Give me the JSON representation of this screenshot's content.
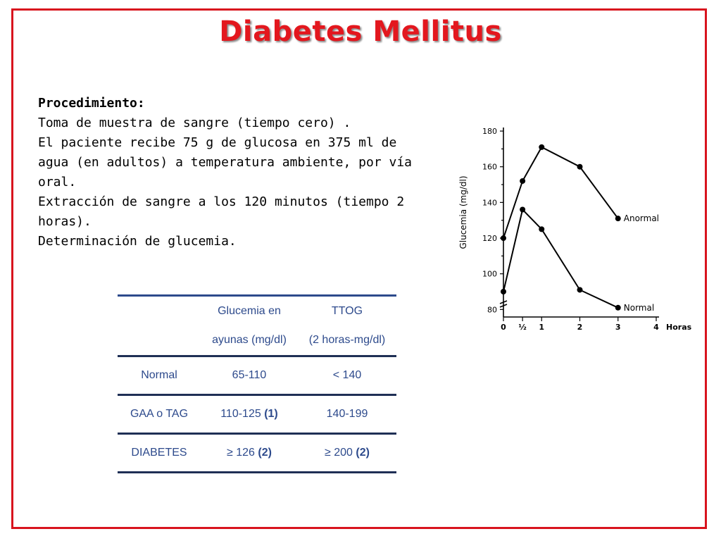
{
  "slide": {
    "title": "Diabetes Mellitus"
  },
  "procedure": {
    "heading": "Procedimiento:",
    "lines": [
      "Toma de muestra de sangre (tiempo cero) .",
      "El paciente recibe 75 g de glucosa en 375 ml de",
      "agua (en adultos) a temperatura ambiente, por vía",
      "oral.",
      "Extracción de sangre a los 120 minutos (tiempo 2",
      "horas).",
      "Determinación de glucemia."
    ]
  },
  "criteria_table": {
    "headers": {
      "col2_line1": "Glucemia en",
      "col2_line2": "ayunas (mg/dl)",
      "col3_line1": "TTOG",
      "col3_line2": "(2 horas-mg/dl)"
    },
    "rows": [
      {
        "label": "Normal",
        "fasting": "65-110",
        "fasting_note": "",
        "ogtt": "< 140",
        "ogtt_note": ""
      },
      {
        "label": "GAA o TAG",
        "fasting": "110-125",
        "fasting_note": "(1)",
        "ogtt": "140-199",
        "ogtt_note": ""
      },
      {
        "label": "DIABETES",
        "fasting": "≥  126",
        "fasting_note": "(2)",
        "ogtt": "≥  200",
        "ogtt_note": "(2)"
      }
    ],
    "color": "#2d4a8c"
  },
  "chart_data": {
    "type": "line",
    "ylabel": "Glucemia (mg/dl)",
    "xlabel": "Horas",
    "x": [
      0,
      0.5,
      1,
      2,
      3
    ],
    "x_tick_labels": [
      "0",
      "½",
      "1",
      "2",
      "3",
      "4"
    ],
    "x_tick_values": [
      0,
      0.5,
      1,
      2,
      3,
      4
    ],
    "y_tick_labels": [
      "80",
      "100",
      "120",
      "140",
      "160",
      "180"
    ],
    "y_tick_values": [
      80,
      100,
      120,
      140,
      160,
      180
    ],
    "ylim": [
      75,
      182
    ],
    "xlim": [
      0,
      4
    ],
    "series": [
      {
        "name": "Anormal",
        "values": [
          120,
          152,
          171,
          160,
          131
        ]
      },
      {
        "name": "Normal",
        "values": [
          90,
          136,
          125,
          91,
          81
        ]
      }
    ]
  },
  "colors": {
    "frame": "#d8141e",
    "title": "#e3171e",
    "table_text": "#2d4a8c"
  }
}
